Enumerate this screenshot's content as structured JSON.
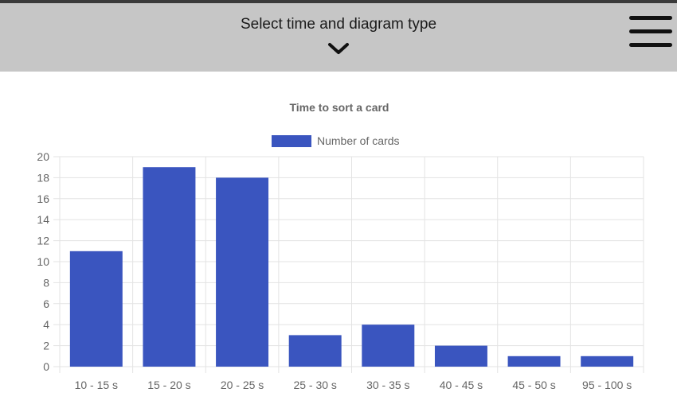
{
  "header": {
    "title": "Select time and diagram type",
    "dropdown_icon": "chevron-down-icon",
    "menu_icon": "hamburger-menu-icon"
  },
  "colors": {
    "header_bg": "#c6c6c6",
    "bar": "#3a55bf",
    "grid": "#e3e3e3",
    "tick_text": "#666666"
  },
  "chart_data": {
    "type": "bar",
    "title": "Time to sort a card",
    "categories": [
      "10 - 15 s",
      "15 - 20 s",
      "20 - 25 s",
      "25 - 30 s",
      "30 - 35 s",
      "40 - 45 s",
      "45 - 50 s",
      "95 - 100 s"
    ],
    "series": [
      {
        "name": "Number of cards",
        "values": [
          11,
          19,
          18,
          3,
          4,
          2,
          1,
          1
        ]
      }
    ],
    "ylim": [
      0,
      20
    ],
    "yticks": [
      0,
      2,
      4,
      6,
      8,
      10,
      12,
      14,
      16,
      18,
      20
    ],
    "grid": true,
    "legend": "top-center"
  }
}
